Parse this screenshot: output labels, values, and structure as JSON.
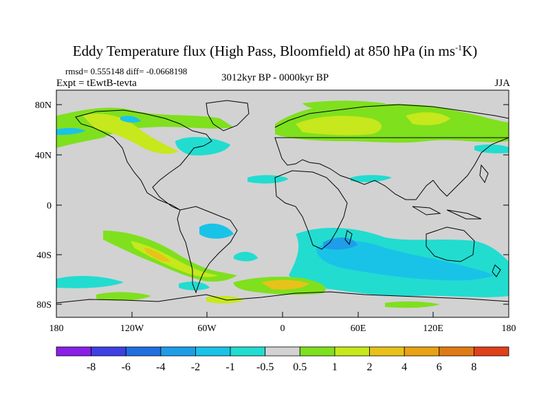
{
  "header": {
    "title": "Eddy Temperature flux (High Pass, Bloomfield) at 850 hPa (in ms",
    "title_sup": "-1",
    "title_end": "K)",
    "stats": "rmsd= 0.555148 diff= -0.0668198",
    "expt": "Expt = tEwtB-tevta",
    "period": "3012kyr BP - 0000kyr BP",
    "season": "JJA"
  },
  "axes": {
    "y_ticks": [
      "80N",
      "40N",
      "0",
      "40S",
      "80S"
    ],
    "x_ticks": [
      "180",
      "120W",
      "60W",
      "0",
      "60E",
      "120E",
      "180"
    ]
  },
  "colorbar": {
    "levels": [
      "-8",
      "-6",
      "-4",
      "-2",
      "-1",
      "-0.5",
      "0.5",
      "1",
      "2",
      "4",
      "6",
      "8"
    ],
    "colors": [
      "#8a20e8",
      "#3f3fe6",
      "#1f6fe0",
      "#1f9de8",
      "#19c3e8",
      "#22dcd0",
      "#d2d2d2",
      "#7fe01e",
      "#c6e81c",
      "#e8c21a",
      "#e8a214",
      "#e07a14",
      "#e0401a"
    ]
  },
  "map": {
    "land_color": "#d2d2d2",
    "coastline_color": "#000000"
  }
}
